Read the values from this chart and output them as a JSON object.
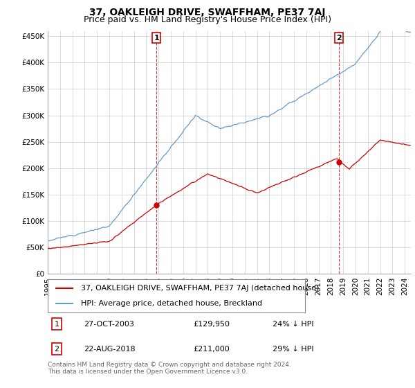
{
  "title": "37, OAKLEIGH DRIVE, SWAFFHAM, PE37 7AJ",
  "subtitle": "Price paid vs. HM Land Registry's House Price Index (HPI)",
  "ylabel_ticks": [
    "£0",
    "£50K",
    "£100K",
    "£150K",
    "£200K",
    "£250K",
    "£300K",
    "£350K",
    "£400K",
    "£450K"
  ],
  "ytick_vals": [
    0,
    50000,
    100000,
    150000,
    200000,
    250000,
    300000,
    350000,
    400000,
    450000
  ],
  "ylim": [
    0,
    460000
  ],
  "xlim_start": 1995.0,
  "xlim_end": 2024.5,
  "background_color": "#ffffff",
  "grid_color": "#cccccc",
  "hpi_color": "#6699cc",
  "price_color": "#cc0000",
  "sale1_year": 2003.83,
  "sale1_price": 129950,
  "sale2_year": 2018.65,
  "sale2_price": 211000,
  "legend_line1": "37, OAKLEIGH DRIVE, SWAFFHAM, PE37 7AJ (detached house)",
  "legend_line2": "HPI: Average price, detached house, Breckland",
  "table_row1": [
    "1",
    "27-OCT-2003",
    "£129,950",
    "24% ↓ HPI"
  ],
  "table_row2": [
    "2",
    "22-AUG-2018",
    "£211,000",
    "29% ↓ HPI"
  ],
  "footer": "Contains HM Land Registry data © Crown copyright and database right 2024.\nThis data is licensed under the Open Government Licence v3.0.",
  "title_fontsize": 10,
  "subtitle_fontsize": 9,
  "tick_fontsize": 7.5,
  "legend_fontsize": 8,
  "table_fontsize": 8,
  "footer_fontsize": 6.5
}
